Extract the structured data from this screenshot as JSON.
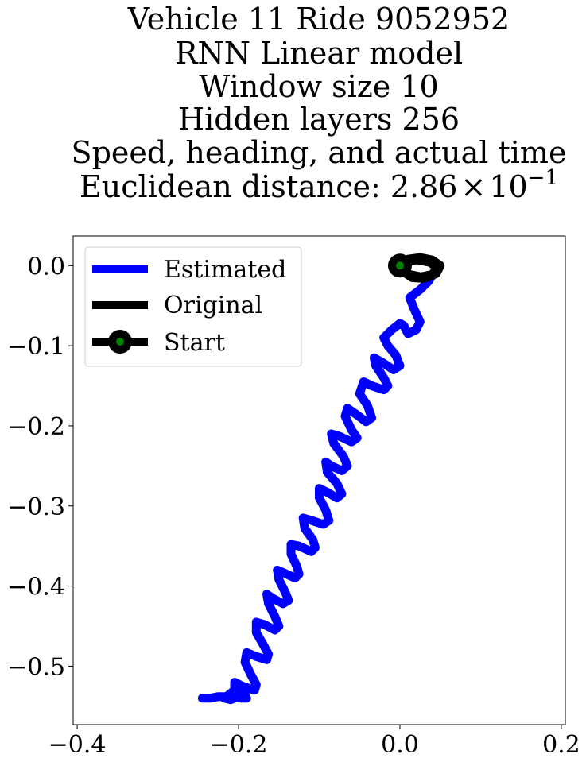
{
  "chart_data": {
    "type": "line",
    "title_lines": [
      "Vehicle 11 Ride 9052952",
      "RNN Linear model",
      "Window size 10",
      "Hidden layers 256",
      "Speed, heading, and actual time"
    ],
    "distance_label": "Euclidean distance: ",
    "distance_mantissa": "2.86",
    "distance_times": "×",
    "distance_base": "10",
    "distance_exponent": "−1",
    "xlim": [
      -0.405,
      0.205
    ],
    "ylim": [
      -0.573,
      0.037
    ],
    "xticks": [
      -0.4,
      -0.2,
      0.0,
      0.2
    ],
    "xtick_labels": [
      "−0.4",
      "−0.2",
      "0.0",
      "0.2"
    ],
    "yticks": [
      0.0,
      -0.1,
      -0.2,
      -0.3,
      -0.4,
      -0.5
    ],
    "ytick_labels": [
      "0.0",
      "−0.1",
      "−0.2",
      "−0.3",
      "−0.4",
      "−0.5"
    ],
    "legend": {
      "placement": "upper-left",
      "entries": [
        "Estimated",
        "Original",
        "Start"
      ]
    },
    "colors": {
      "estimated": "#0000ff",
      "original": "#000000",
      "start_edge": "#000000",
      "start_face": "#008000"
    },
    "series": [
      {
        "name": "Estimated",
        "x": [
          0.045,
          0.035,
          0.025,
          0.012,
          0.018,
          0.025,
          0.02,
          0.01,
          0.005,
          0.0,
          -0.01,
          -0.02,
          -0.015,
          -0.005,
          0.0,
          -0.008,
          -0.02,
          -0.032,
          -0.03,
          -0.02,
          -0.015,
          -0.02,
          -0.035,
          -0.045,
          -0.05,
          -0.04,
          -0.035,
          -0.042,
          -0.055,
          -0.065,
          -0.068,
          -0.06,
          -0.053,
          -0.06,
          -0.075,
          -0.085,
          -0.082,
          -0.07,
          -0.065,
          -0.072,
          -0.085,
          -0.092,
          -0.09,
          -0.078,
          -0.072,
          -0.078,
          -0.09,
          -0.1,
          -0.1,
          -0.092,
          -0.088,
          -0.095,
          -0.11,
          -0.12,
          -0.118,
          -0.108,
          -0.105,
          -0.11,
          -0.125,
          -0.135,
          -0.135,
          -0.128,
          -0.125,
          -0.13,
          -0.145,
          -0.152,
          -0.15,
          -0.142,
          -0.138,
          -0.145,
          -0.158,
          -0.165,
          -0.163,
          -0.155,
          -0.15,
          -0.155,
          -0.168,
          -0.178,
          -0.178,
          -0.17,
          -0.163,
          -0.165,
          -0.178,
          -0.19,
          -0.192,
          -0.185,
          -0.178,
          -0.18,
          -0.195,
          -0.205,
          -0.205,
          -0.198,
          -0.19,
          -0.192,
          -0.205,
          -0.215,
          -0.218,
          -0.21,
          -0.205,
          -0.21,
          -0.225,
          -0.235,
          -0.245
        ],
        "y": [
          -0.005,
          -0.02,
          -0.03,
          -0.04,
          -0.055,
          -0.07,
          -0.08,
          -0.085,
          -0.075,
          -0.072,
          -0.08,
          -0.09,
          -0.1,
          -0.112,
          -0.125,
          -0.13,
          -0.122,
          -0.115,
          -0.125,
          -0.14,
          -0.15,
          -0.155,
          -0.15,
          -0.145,
          -0.16,
          -0.175,
          -0.19,
          -0.195,
          -0.185,
          -0.178,
          -0.188,
          -0.205,
          -0.215,
          -0.22,
          -0.213,
          -0.21,
          -0.222,
          -0.238,
          -0.25,
          -0.256,
          -0.25,
          -0.245,
          -0.258,
          -0.272,
          -0.285,
          -0.29,
          -0.283,
          -0.278,
          -0.29,
          -0.305,
          -0.318,
          -0.323,
          -0.318,
          -0.315,
          -0.328,
          -0.342,
          -0.352,
          -0.357,
          -0.35,
          -0.348,
          -0.36,
          -0.375,
          -0.385,
          -0.39,
          -0.383,
          -0.38,
          -0.392,
          -0.408,
          -0.418,
          -0.422,
          -0.415,
          -0.41,
          -0.422,
          -0.438,
          -0.45,
          -0.455,
          -0.448,
          -0.445,
          -0.458,
          -0.472,
          -0.485,
          -0.492,
          -0.488,
          -0.483,
          -0.495,
          -0.51,
          -0.523,
          -0.53,
          -0.525,
          -0.52,
          -0.53,
          -0.54,
          -0.54,
          -0.535,
          -0.53,
          -0.538,
          -0.54,
          -0.542,
          -0.54,
          -0.538,
          -0.538,
          -0.54,
          -0.54
        ]
      },
      {
        "name": "Original",
        "x": [
          0.0,
          0.01,
          0.025,
          0.04,
          0.05,
          0.045,
          0.03,
          0.015,
          0.005,
          0.0,
          0.008,
          0.022,
          0.038,
          0.046,
          0.04,
          0.026,
          0.012,
          0.004,
          0.0
        ],
        "y": [
          0.0,
          0.008,
          0.01,
          0.007,
          0.0,
          -0.01,
          -0.016,
          -0.015,
          -0.008,
          0.0,
          0.006,
          0.007,
          0.004,
          -0.003,
          -0.011,
          -0.014,
          -0.011,
          -0.005,
          0.0
        ]
      }
    ],
    "start": {
      "x": 0.0,
      "y": 0.0
    }
  }
}
